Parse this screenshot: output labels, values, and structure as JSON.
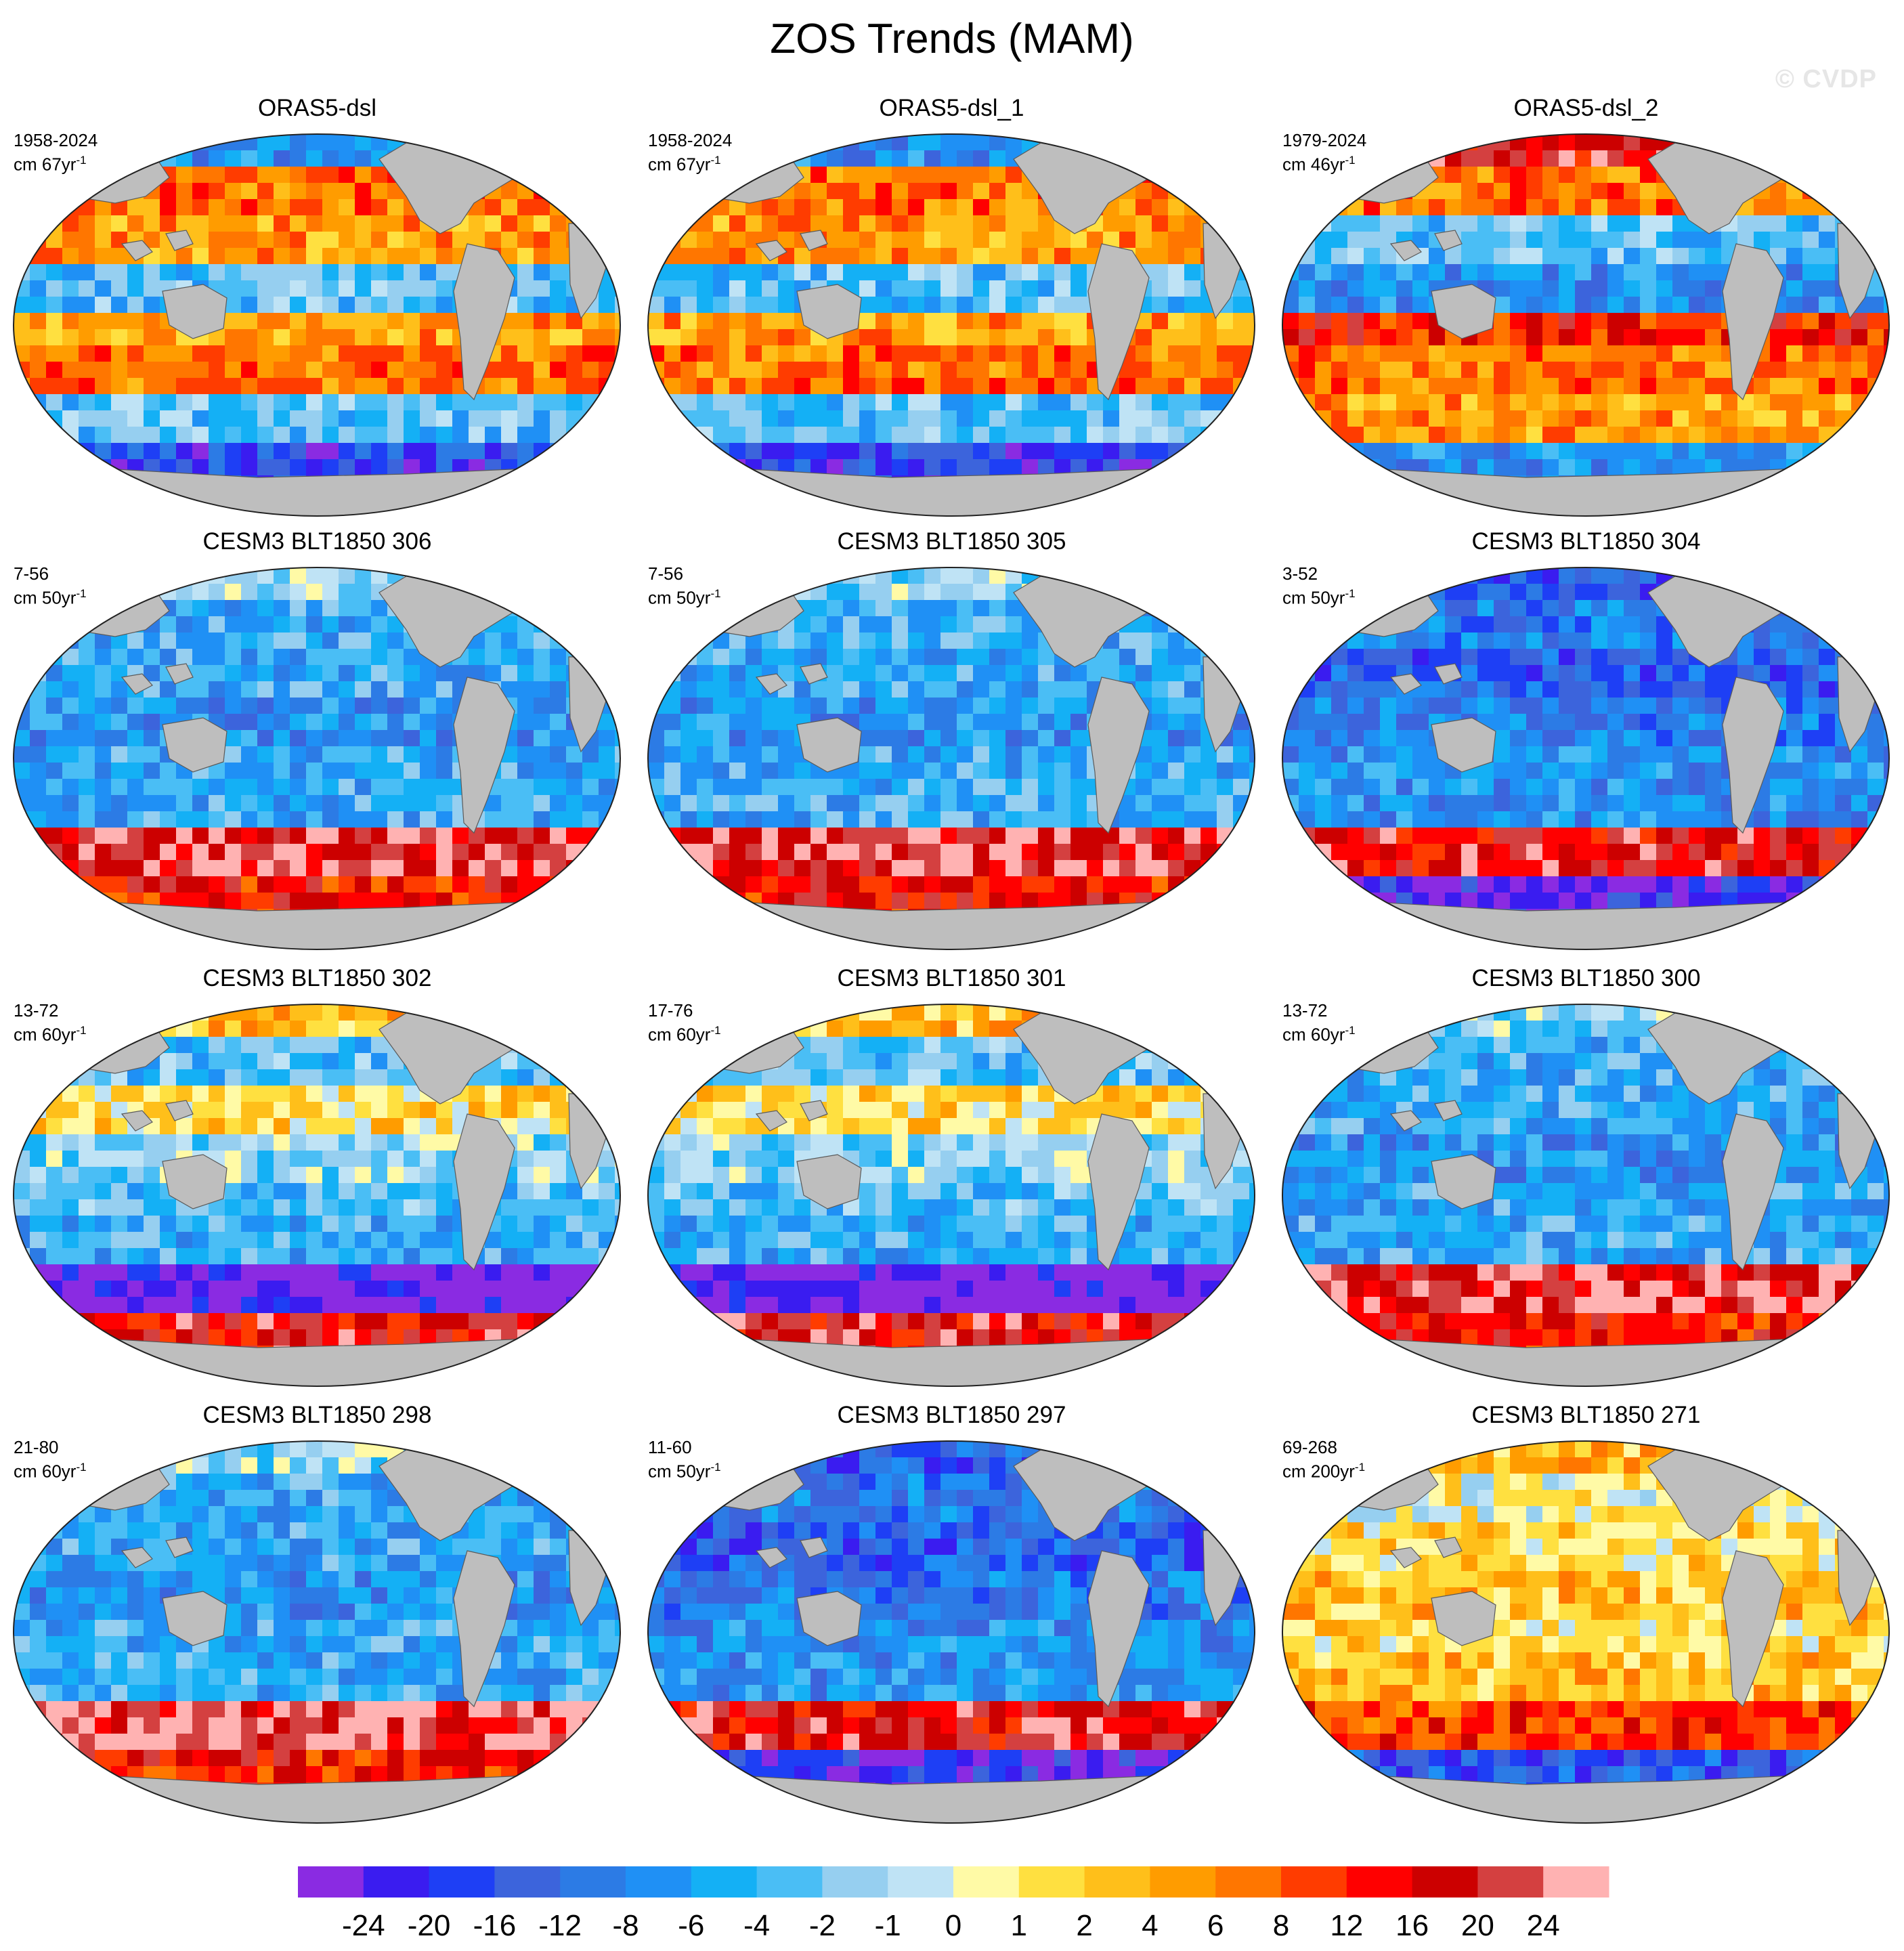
{
  "figure": {
    "title": "ZOS Trends (MAM)",
    "watermark": "© CVDP"
  },
  "panels": [
    {
      "title": "ORAS5-dsl",
      "years": "1958-2024",
      "units": "cm 67yr",
      "unit_exp": "-1",
      "pattern": "obs1"
    },
    {
      "title": "ORAS5-dsl_1",
      "years": "1958-2024",
      "units": "cm 67yr",
      "unit_exp": "-1",
      "pattern": "obs1"
    },
    {
      "title": "ORAS5-dsl_2",
      "years": "1979-2024",
      "units": "cm 46yr",
      "unit_exp": "-1",
      "pattern": "obs2"
    },
    {
      "title": "CESM3 BLT1850 306",
      "years": "7-56",
      "units": "cm 50yr",
      "unit_exp": "-1",
      "pattern": "model_blue"
    },
    {
      "title": "CESM3 BLT1850 305",
      "years": "7-56",
      "units": "cm 50yr",
      "unit_exp": "-1",
      "pattern": "model_blue"
    },
    {
      "title": "CESM3 BLT1850 304",
      "years": "3-52",
      "units": "cm 50yr",
      "unit_exp": "-1",
      "pattern": "model_deep"
    },
    {
      "title": "CESM3 BLT1850 302",
      "years": "13-72",
      "units": "cm 60yr",
      "unit_exp": "-1",
      "pattern": "model_mixed"
    },
    {
      "title": "CESM3 BLT1850 301",
      "years": "17-76",
      "units": "cm 60yr",
      "unit_exp": "-1",
      "pattern": "model_mixed"
    },
    {
      "title": "CESM3 BLT1850 300",
      "years": "13-72",
      "units": "cm 60yr",
      "unit_exp": "-1",
      "pattern": "model_blue"
    },
    {
      "title": "CESM3 BLT1850 298",
      "years": "21-80",
      "units": "cm 60yr",
      "unit_exp": "-1",
      "pattern": "model_blue"
    },
    {
      "title": "CESM3 BLT1850 297",
      "years": "11-60",
      "units": "cm 50yr",
      "unit_exp": "-1",
      "pattern": "model_deep"
    },
    {
      "title": "CESM3 BLT1850 271",
      "years": "69-268",
      "units": "cm 200yr",
      "unit_exp": "-1",
      "pattern": "model_warm"
    }
  ],
  "colorbar": {
    "labels": [
      "-24",
      "-20",
      "-16",
      "-12",
      "-8",
      "-6",
      "-4",
      "-2",
      "-1",
      "0",
      "1",
      "2",
      "4",
      "6",
      "8",
      "12",
      "16",
      "20",
      "24"
    ],
    "colors": [
      "#8a2be2",
      "#3a1cf0",
      "#1e3ff5",
      "#3c64dc",
      "#2c7be5",
      "#1f90f5",
      "#14b0f5",
      "#4abef5",
      "#96cff0",
      "#bfe3f5",
      "#fffaa6",
      "#ffe040",
      "#ffbf1a",
      "#ff9c00",
      "#ff7600",
      "#ff3c00",
      "#ff0000",
      "#cc0000",
      "#d44040",
      "#ffb2b2"
    ],
    "land_color": "#bebebe"
  }
}
